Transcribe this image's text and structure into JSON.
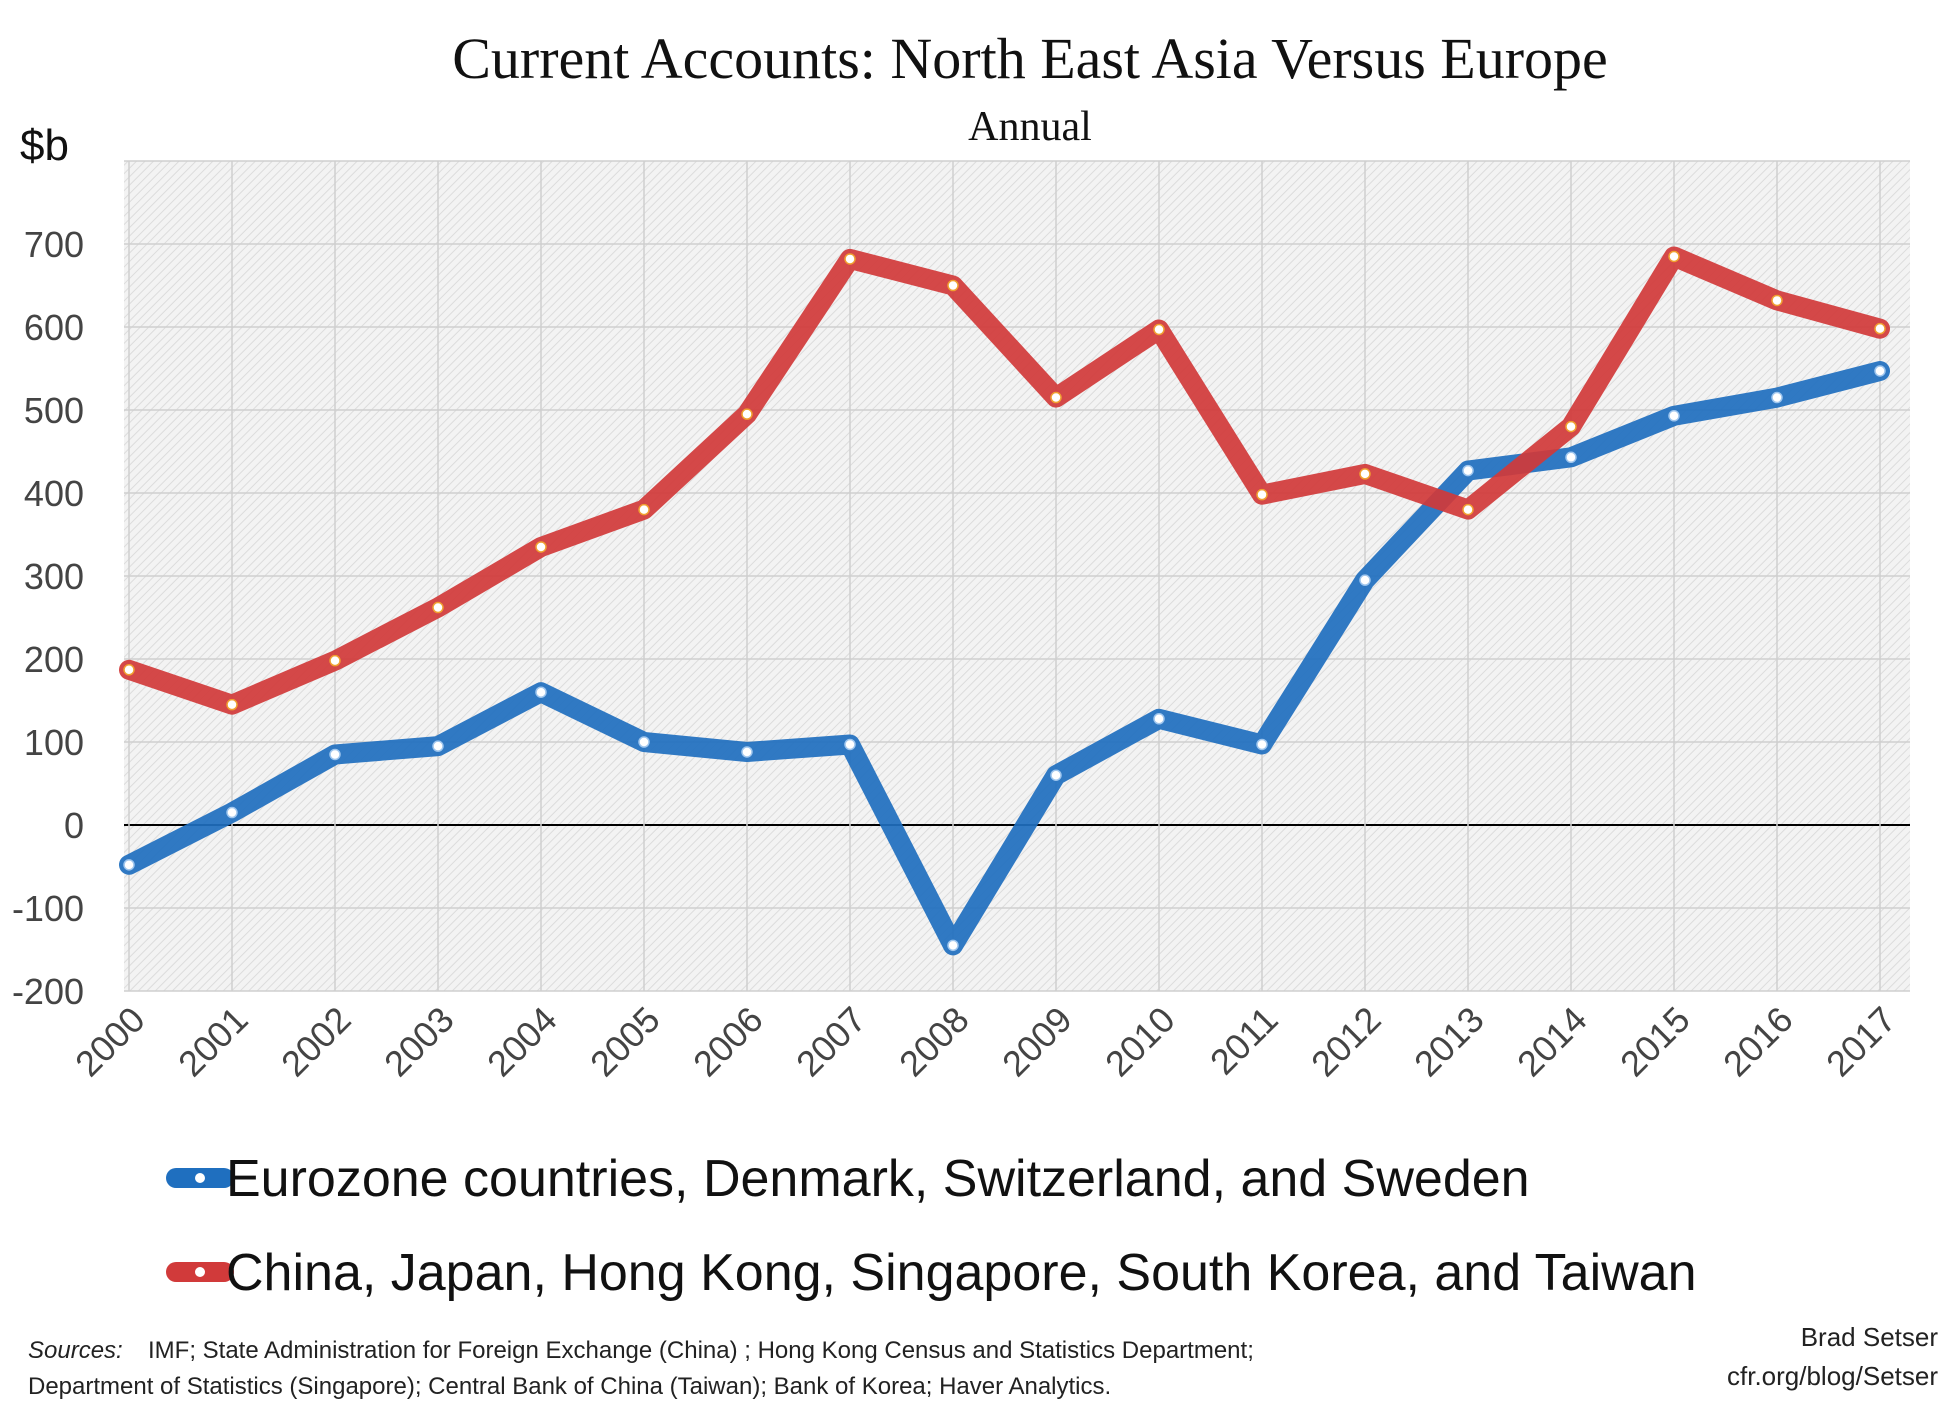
{
  "chart_data": {
    "type": "line",
    "title": "Current Accounts: North East Asia Versus Europe",
    "subtitle": "Annual",
    "ylabel": "$b",
    "xlabel": "",
    "ylim": [
      -200,
      800
    ],
    "yticks": [
      -200,
      -100,
      0,
      100,
      200,
      300,
      400,
      500,
      600,
      700
    ],
    "grid": true,
    "legend_position": "bottom",
    "x": [
      "2000",
      "2001",
      "2002",
      "2003",
      "2004",
      "2005",
      "2006",
      "2007",
      "2008",
      "2009",
      "2010",
      "2011",
      "2012",
      "2013",
      "2014",
      "2015",
      "2016",
      "2017"
    ],
    "series": [
      {
        "name": "Eurozone countries, Denmark, Switzerland, and Sweden",
        "color": "#1f6fbf",
        "values": [
          -48,
          15,
          85,
          95,
          160,
          100,
          88,
          97,
          -145,
          60,
          128,
          97,
          295,
          427,
          443,
          493,
          515,
          547
        ]
      },
      {
        "name": "China, Japan, Hong Kong, Singapore, South Korea, and Taiwan",
        "color": "#d13a3a",
        "values": [
          187,
          145,
          198,
          262,
          335,
          380,
          495,
          682,
          650,
          515,
          597,
          398,
          423,
          380,
          480,
          685,
          632,
          598
        ]
      }
    ]
  },
  "footer": {
    "sources_label": "Sources:",
    "sources_line1": "IMF; State Administration for Foreign Exchange (China) ; Hong Kong Census and Statistics Department;",
    "sources_line2": "Department of Statistics (Singapore); Central Bank of China (Taiwan); Bank of Korea; Haver Analytics.",
    "credit_line1": "Brad Setser",
    "credit_line2": "cfr.org/blog/Setser"
  }
}
